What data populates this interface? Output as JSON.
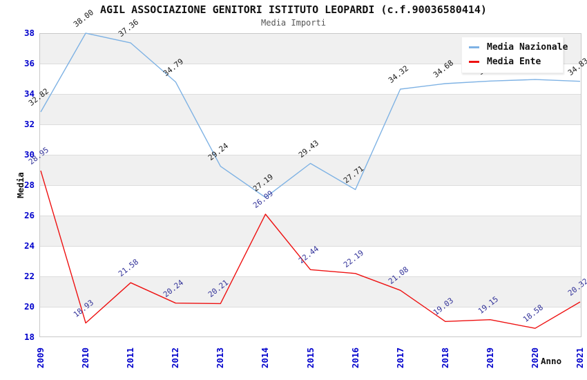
{
  "chart_data": {
    "type": "line",
    "title": "AGIL ASSOCIAZIONE GENITORI ISTITUTO LEOPARDI (c.f.90036580414)",
    "subtitle": "Media Importi",
    "xlabel": "Anno",
    "ylabel": "Media",
    "x": [
      "2009",
      "2010",
      "2011",
      "2012",
      "2013",
      "2014",
      "2015",
      "2016",
      "2017",
      "2018",
      "2019",
      "2020",
      "2021"
    ],
    "ylim": [
      18,
      38
    ],
    "yticks": [
      18,
      20,
      22,
      24,
      26,
      28,
      30,
      32,
      34,
      36,
      38
    ],
    "grid": "horizontal alternating bands every 2 units",
    "legend_position": "top-right",
    "series": [
      {
        "name": "Media Nazionale",
        "color": "#7EB2E4",
        "label_color": "#1a1a1a",
        "values": [
          32.82,
          38.0,
          37.36,
          34.79,
          29.24,
          27.19,
          29.43,
          27.71,
          34.32,
          34.68,
          34.85,
          34.95,
          34.83
        ],
        "labels": [
          "32.82",
          "38.00",
          "37.36",
          "34.79",
          "29.24",
          "27.19",
          "29.43",
          "27.71",
          "34.32",
          "34.68",
          "34.85",
          "34.95",
          "34.83"
        ]
      },
      {
        "name": "Media Ente",
        "color": "#EE1111",
        "label_color": "#333399",
        "values": [
          28.95,
          18.93,
          21.58,
          20.24,
          20.21,
          26.09,
          22.44,
          22.19,
          21.08,
          19.03,
          19.15,
          18.58,
          20.32
        ],
        "labels": [
          "28.95",
          "18.93",
          "21.58",
          "20.24",
          "20.21",
          "26.09",
          "22.44",
          "22.19",
          "21.08",
          "19.03",
          "19.15",
          "18.58",
          "20.32"
        ]
      }
    ],
    "colors": {
      "axis_tick_text": "#0000CC",
      "band_fill": "#F0F0F0",
      "gridline": "#DCDCDC",
      "plot_border": "#C8C8C8",
      "title_text": "#111111",
      "subtitle_text": "#555555"
    }
  }
}
